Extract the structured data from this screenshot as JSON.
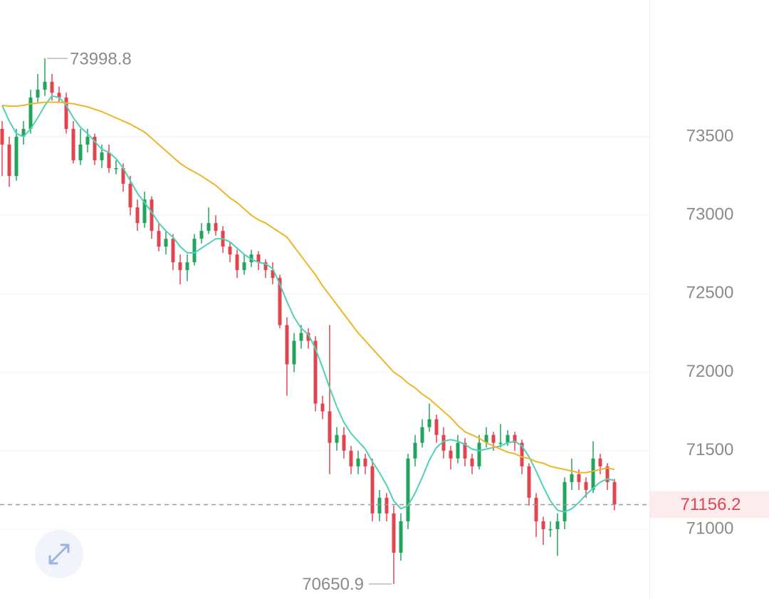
{
  "chart_data": {
    "type": "candlestick",
    "up_color": "#22a45d",
    "down_color": "#e0444f",
    "grid": true,
    "ylim": [
      70555,
      74371
    ],
    "yticks": [
      71000,
      71500,
      72000,
      72500,
      73000,
      73500
    ],
    "open": [
      73550,
      73450,
      73250,
      73500,
      73550,
      73750,
      73800,
      73850,
      73780,
      73750,
      73550,
      73350,
      73450,
      73500,
      73350,
      73400,
      73300,
      73300,
      73200,
      73050,
      72950,
      73100,
      72900,
      72800,
      72850,
      72700,
      72650,
      72700,
      72850,
      72900,
      72950,
      72900,
      72800,
      72750,
      72650,
      72700,
      72750,
      72700,
      72650,
      72600,
      72300,
      72050,
      72200,
      72250,
      72200,
      71800,
      71750,
      71550,
      71600,
      71500,
      71400,
      71450,
      71400,
      71100,
      71200,
      71100,
      70850,
      71050,
      71450,
      71550,
      71650,
      71700,
      71600,
      71500,
      71450,
      71550,
      71450,
      71400,
      71550,
      71600,
      71550,
      71550,
      71600,
      71550,
      71400,
      71200,
      71050,
      71000,
      71000,
      71050,
      71300,
      71350,
      71300,
      71250,
      71450,
      71400,
      71300
    ],
    "high": [
      73600,
      73500,
      73550,
      73600,
      73800,
      73900,
      73998.8,
      73900,
      73820,
      73780,
      73600,
      73550,
      73550,
      73520,
      73450,
      73450,
      73350,
      73330,
      73250,
      73100,
      73150,
      73120,
      72950,
      72900,
      72880,
      72750,
      72750,
      72880,
      72950,
      73050,
      73000,
      72930,
      72830,
      72780,
      72750,
      72780,
      72770,
      72720,
      72700,
      72620,
      72350,
      72250,
      72300,
      72280,
      72230,
      71850,
      72300,
      71650,
      71650,
      71530,
      71500,
      71480,
      71450,
      71250,
      71230,
      71150,
      71100,
      71480,
      71600,
      71700,
      71800,
      71730,
      71650,
      71530,
      71600,
      71580,
      71480,
      71600,
      71650,
      71620,
      71670,
      71630,
      71620,
      71570,
      71420,
      71230,
      71080,
      71050,
      71100,
      71330,
      71450,
      71380,
      71330,
      71560,
      71480,
      71420,
      71320
    ],
    "low": [
      73250,
      73180,
      73220,
      73450,
      73520,
      73720,
      73760,
      73730,
      73720,
      73520,
      73330,
      73320,
      73400,
      73320,
      73300,
      73270,
      73260,
      73150,
      73000,
      72900,
      72920,
      72850,
      72770,
      72750,
      72650,
      72560,
      72580,
      72680,
      72820,
      72880,
      72870,
      72760,
      72700,
      72600,
      72620,
      72670,
      72650,
      72600,
      72560,
      72280,
      71850,
      72000,
      72150,
      72150,
      71750,
      71700,
      71350,
      71500,
      71450,
      71350,
      71350,
      71350,
      71050,
      71050,
      71050,
      70650.9,
      70800,
      71000,
      71400,
      71520,
      71620,
      71550,
      71450,
      71380,
      71420,
      71400,
      71350,
      71380,
      71520,
      71500,
      71520,
      71530,
      71500,
      71350,
      71150,
      70950,
      70900,
      70950,
      70830,
      71000,
      71250,
      71250,
      71200,
      71230,
      71350,
      71250,
      71120
    ],
    "close": [
      73450,
      73250,
      73500,
      73550,
      73750,
      73800,
      73850,
      73780,
      73750,
      73550,
      73350,
      73450,
      73500,
      73350,
      73400,
      73300,
      73300,
      73200,
      73050,
      72950,
      73100,
      72900,
      72800,
      72850,
      72700,
      72650,
      72700,
      72850,
      72900,
      72950,
      72900,
      72800,
      72750,
      72650,
      72700,
      72750,
      72700,
      72650,
      72600,
      72300,
      72050,
      72200,
      72250,
      72200,
      71800,
      71750,
      71550,
      71600,
      71500,
      71400,
      71450,
      71400,
      71100,
      71200,
      71100,
      70850,
      71050,
      71450,
      71550,
      71650,
      71700,
      71600,
      71500,
      71450,
      71550,
      71450,
      71400,
      71550,
      71600,
      71550,
      71550,
      71600,
      71550,
      71400,
      71200,
      71050,
      71000,
      71000,
      71050,
      71300,
      71350,
      71300,
      71250,
      71450,
      71400,
      71300,
      71156.2
    ],
    "lines": [
      {
        "color": "#4fd1b5",
        "values": [
          73700,
          73600,
          73520,
          73500,
          73550,
          73620,
          73700,
          73760,
          73750,
          73700,
          73620,
          73560,
          73520,
          73470,
          73420,
          73400,
          73360,
          73300,
          73220,
          73140,
          73080,
          73020,
          72950,
          72900,
          72860,
          72800,
          72760,
          72760,
          72790,
          72820,
          72850,
          72850,
          72830,
          72790,
          72750,
          72720,
          72700,
          72690,
          72660,
          72560,
          72450,
          72350,
          72280,
          72240,
          72150,
          72030,
          71900,
          71780,
          71680,
          71610,
          71560,
          71510,
          71430,
          71360,
          71280,
          71180,
          71130,
          71150,
          71230,
          71330,
          71440,
          71520,
          71560,
          71570,
          71560,
          71540,
          71510,
          71500,
          71510,
          71520,
          71530,
          71550,
          71560,
          71530,
          71460,
          71370,
          71270,
          71180,
          71120,
          71110,
          71130,
          71170,
          71220,
          71260,
          71300,
          71320,
          71310
        ]
      },
      {
        "color": "#f0b429",
        "values": [
          73700,
          73695,
          73695,
          73700,
          73710,
          73715,
          73720,
          73720,
          73720,
          73715,
          73710,
          73700,
          73690,
          73675,
          73660,
          73640,
          73620,
          73600,
          73580,
          73555,
          73530,
          73490,
          73450,
          73410,
          73370,
          73330,
          73300,
          73275,
          73250,
          73220,
          73190,
          73150,
          73110,
          73080,
          73040,
          73000,
          72970,
          72950,
          72920,
          72890,
          72860,
          72800,
          72740,
          72680,
          72620,
          72550,
          72490,
          72430,
          72370,
          72310,
          72250,
          72200,
          72150,
          72100,
          72050,
          72000,
          71970,
          71930,
          71900,
          71860,
          71830,
          71790,
          71750,
          71710,
          71660,
          71620,
          71600,
          71580,
          71550,
          71530,
          71510,
          71490,
          71480,
          71460,
          71450,
          71430,
          71420,
          71400,
          71390,
          71380,
          71370,
          71360,
          71360,
          71370,
          71380,
          71390,
          71380
        ]
      }
    ],
    "last_price": 71156.2
  }
}
